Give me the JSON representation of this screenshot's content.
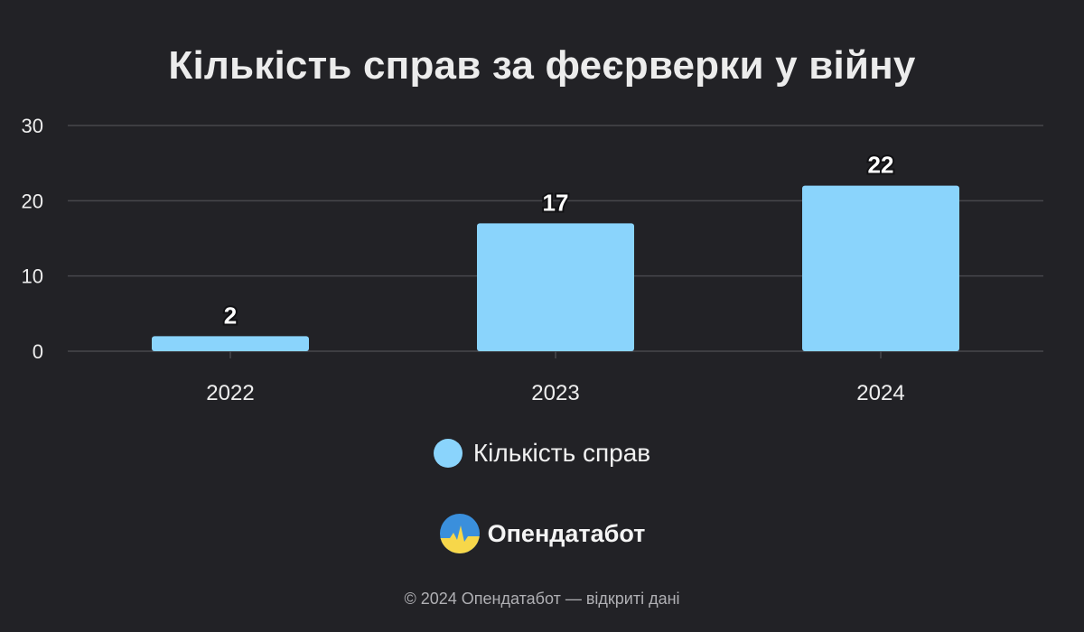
{
  "chart_data": {
    "type": "bar",
    "title": "Кількість справ за феєрверки у війну",
    "categories": [
      "2022",
      "2023",
      "2024"
    ],
    "series": [
      {
        "name": "Кількість справ",
        "values": [
          2,
          17,
          22
        ],
        "color": "#8ad4fc"
      }
    ],
    "yticks": [
      "0",
      "10",
      "20",
      "30"
    ],
    "ylim": [
      0,
      30
    ],
    "grid": true,
    "data_labels": true,
    "legend_position": "bottom"
  },
  "brand": {
    "name": "Опендатабот",
    "logo_icon": "opendatabot-logo-icon"
  },
  "footer": {
    "text": "© 2024 Опендатабот — відкриті дані"
  },
  "colors": {
    "background": "#222226",
    "gridline": "#47474c"
  }
}
